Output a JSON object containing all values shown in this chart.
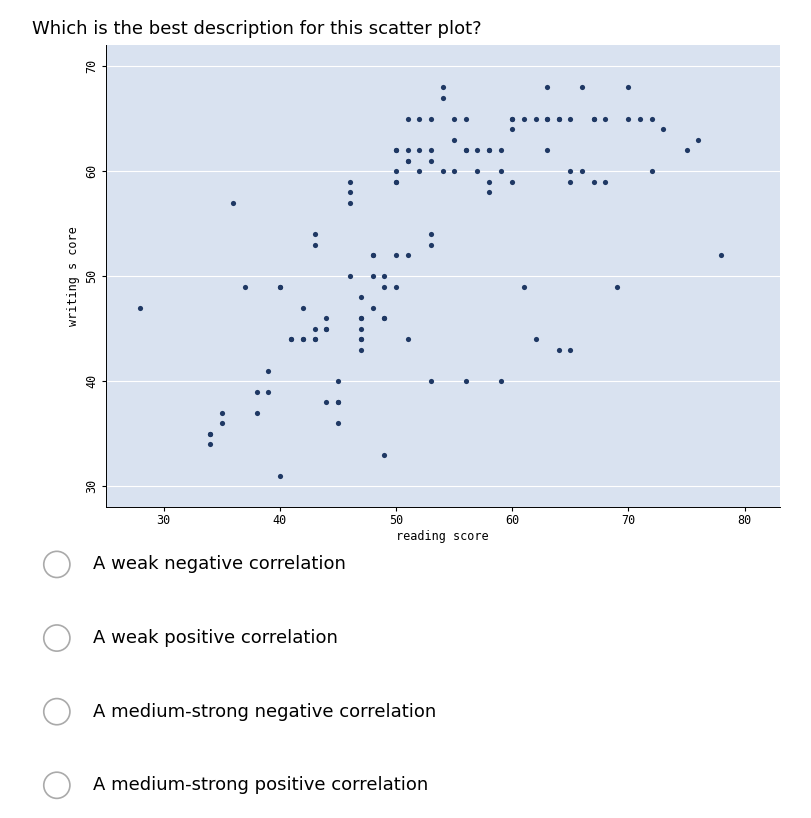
{
  "title": "Which is the best description for this scatter plot?",
  "xlabel": "reading score",
  "ylabel": "writing s core",
  "xlim": [
    25,
    83
  ],
  "ylim": [
    28,
    72
  ],
  "xticks": [
    30,
    40,
    50,
    60,
    70,
    80
  ],
  "yticks": [
    30,
    40,
    50,
    60,
    70
  ],
  "dot_color": "#1f3864",
  "plot_bg": "#d9e2f0",
  "fig_bg": "#ffffff",
  "dot_size": 14,
  "options": [
    "A weak negative correlation",
    "A weak positive correlation",
    "A medium-strong negative correlation",
    "A medium-strong positive correlation"
  ],
  "x": [
    28,
    34,
    34,
    34,
    35,
    35,
    36,
    37,
    38,
    38,
    39,
    39,
    40,
    40,
    40,
    41,
    41,
    42,
    42,
    42,
    43,
    43,
    43,
    43,
    43,
    44,
    44,
    44,
    44,
    45,
    45,
    45,
    45,
    46,
    46,
    46,
    46,
    47,
    47,
    47,
    47,
    47,
    47,
    47,
    48,
    48,
    48,
    48,
    49,
    49,
    49,
    49,
    49,
    50,
    50,
    50,
    50,
    50,
    50,
    50,
    51,
    51,
    51,
    51,
    51,
    51,
    52,
    52,
    52,
    53,
    53,
    53,
    53,
    53,
    53,
    54,
    54,
    54,
    55,
    55,
    55,
    56,
    56,
    56,
    56,
    57,
    57,
    58,
    58,
    58,
    58,
    59,
    59,
    59,
    60,
    60,
    60,
    60,
    61,
    61,
    62,
    62,
    63,
    63,
    63,
    63,
    64,
    64,
    64,
    65,
    65,
    65,
    65,
    66,
    66,
    67,
    67,
    67,
    68,
    68,
    69,
    70,
    70,
    71,
    72,
    72,
    73,
    75,
    76,
    78
  ],
  "y": [
    47,
    35,
    35,
    34,
    36,
    37,
    57,
    49,
    39,
    37,
    41,
    39,
    49,
    49,
    31,
    44,
    44,
    47,
    44,
    44,
    54,
    53,
    44,
    44,
    45,
    46,
    45,
    45,
    38,
    40,
    38,
    38,
    36,
    59,
    58,
    57,
    50,
    48,
    46,
    46,
    45,
    44,
    44,
    43,
    52,
    52,
    50,
    47,
    50,
    49,
    46,
    46,
    33,
    62,
    62,
    60,
    59,
    59,
    52,
    49,
    65,
    62,
    61,
    61,
    52,
    44,
    65,
    62,
    60,
    65,
    62,
    61,
    54,
    53,
    40,
    68,
    67,
    60,
    65,
    63,
    60,
    65,
    62,
    62,
    40,
    62,
    60,
    62,
    62,
    59,
    58,
    62,
    60,
    40,
    65,
    65,
    64,
    59,
    65,
    49,
    65,
    44,
    68,
    65,
    65,
    62,
    65,
    65,
    43,
    65,
    60,
    59,
    43,
    68,
    60,
    65,
    65,
    59,
    65,
    59,
    49,
    68,
    65,
    65,
    65,
    60,
    64,
    62,
    63,
    52
  ]
}
